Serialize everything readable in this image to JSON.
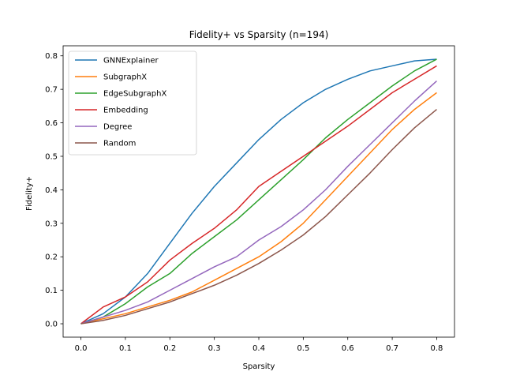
{
  "chart_data": {
    "type": "line",
    "title": "Fidelity+ vs Sparsity (n=194)",
    "xlabel": "Sparsity",
    "ylabel": "Fidelity+",
    "xlim": [
      -0.04,
      0.84
    ],
    "ylim": [
      -0.04,
      0.83
    ],
    "xticks": [
      0.0,
      0.1,
      0.2,
      0.3,
      0.4,
      0.5,
      0.6,
      0.7,
      0.8
    ],
    "xtick_labels": [
      "0.0",
      "0.1",
      "0.2",
      "0.3",
      "0.4",
      "0.5",
      "0.6",
      "0.7",
      "0.8"
    ],
    "yticks": [
      0.0,
      0.1,
      0.2,
      0.3,
      0.4,
      0.5,
      0.6,
      0.7,
      0.8
    ],
    "ytick_labels": [
      "0.0",
      "0.1",
      "0.2",
      "0.3",
      "0.4",
      "0.5",
      "0.6",
      "0.7",
      "0.8"
    ],
    "grid": false,
    "legend_position": "top-left",
    "x": [
      0.0,
      0.05,
      0.1,
      0.15,
      0.2,
      0.25,
      0.3,
      0.35,
      0.4,
      0.45,
      0.5,
      0.55,
      0.6,
      0.65,
      0.7,
      0.75,
      0.8
    ],
    "series": [
      {
        "name": "GNNExplainer",
        "color": "#1f77b4",
        "values": [
          0.0,
          0.03,
          0.08,
          0.15,
          0.24,
          0.33,
          0.41,
          0.48,
          0.55,
          0.61,
          0.66,
          0.7,
          0.73,
          0.755,
          0.77,
          0.785,
          0.79
        ]
      },
      {
        "name": "SubgraphX",
        "color": "#ff7f0e",
        "values": [
          0.0,
          0.015,
          0.03,
          0.05,
          0.07,
          0.095,
          0.13,
          0.165,
          0.2,
          0.245,
          0.3,
          0.37,
          0.44,
          0.51,
          0.58,
          0.64,
          0.69
        ]
      },
      {
        "name": "EdgeSubgraphX",
        "color": "#2ca02c",
        "values": [
          0.0,
          0.02,
          0.06,
          0.11,
          0.15,
          0.21,
          0.26,
          0.31,
          0.37,
          0.43,
          0.49,
          0.555,
          0.61,
          0.66,
          0.71,
          0.755,
          0.79
        ]
      },
      {
        "name": "Embedding",
        "color": "#d62728",
        "values": [
          0.0,
          0.05,
          0.08,
          0.125,
          0.19,
          0.24,
          0.285,
          0.34,
          0.41,
          0.455,
          0.5,
          0.545,
          0.59,
          0.64,
          0.69,
          0.73,
          0.77
        ]
      },
      {
        "name": "Degree",
        "color": "#9467bd",
        "values": [
          0.0,
          0.02,
          0.04,
          0.065,
          0.1,
          0.135,
          0.17,
          0.2,
          0.25,
          0.29,
          0.34,
          0.4,
          0.47,
          0.535,
          0.6,
          0.665,
          0.725
        ]
      },
      {
        "name": "Random",
        "color": "#8c564b",
        "values": [
          0.0,
          0.01,
          0.025,
          0.045,
          0.065,
          0.09,
          0.115,
          0.145,
          0.18,
          0.22,
          0.265,
          0.32,
          0.385,
          0.45,
          0.52,
          0.585,
          0.64
        ]
      }
    ]
  }
}
